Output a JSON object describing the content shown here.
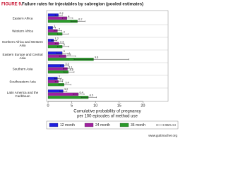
{
  "chart_data": {
    "type": "bar",
    "orientation": "horizontal",
    "title_prefix": "FIGURE 9.",
    "title": "Failure rates for injectables by subregion (pooled estimates)",
    "categories": [
      "Eastern Africa",
      "Western Africa",
      "Northern Africa and Western Asia",
      "Eastern Europe and Central Asia",
      "Southern Asia",
      "Southeastern Asia",
      "Latin America and the Caribbean"
    ],
    "series": [
      {
        "name": "12 month",
        "color": "#1f1fe0",
        "values": [
          2.2,
          1.0,
          1.2,
          3.0,
          3.4,
          2.0,
          3.2
        ],
        "ci_low": [
          1.5,
          0.6,
          0.7,
          1.8,
          2.6,
          1.4,
          2.5
        ],
        "ci_high": [
          3.0,
          1.6,
          1.9,
          4.5,
          4.4,
          2.8,
          4.0
        ]
      },
      {
        "name": "24 month",
        "color": "#a020a0",
        "values": [
          4.0,
          2.0,
          2.3,
          3.8,
          4.1,
          2.2,
          6.4
        ],
        "ci_low": [
          3.0,
          1.3,
          1.5,
          2.4,
          3.2,
          1.5,
          5.3
        ],
        "ci_high": [
          5.2,
          2.9,
          3.3,
          5.8,
          5.2,
          3.1,
          7.6
        ]
      },
      {
        "name": "36 month",
        "color": "#2a9a2a",
        "values": [
          6.2,
          3.0,
          3.0,
          9.6,
          4.3,
          3.4,
          8.5
        ],
        "ci_low": [
          4.8,
          2.0,
          2.0,
          5.5,
          3.3,
          2.3,
          7.0
        ],
        "ci_high": [
          7.8,
          4.3,
          4.4,
          17.0,
          5.5,
          4.8,
          10.2
        ]
      }
    ],
    "ci_name": "95% CI",
    "xlim": [
      0,
      25
    ],
    "xticks": [
      0,
      5,
      10,
      15,
      20
    ],
    "xlabel": [
      "Cumulative probability of pregnancy",
      "per 100 episodes of method use"
    ],
    "source": "www.guttmacher.org"
  }
}
